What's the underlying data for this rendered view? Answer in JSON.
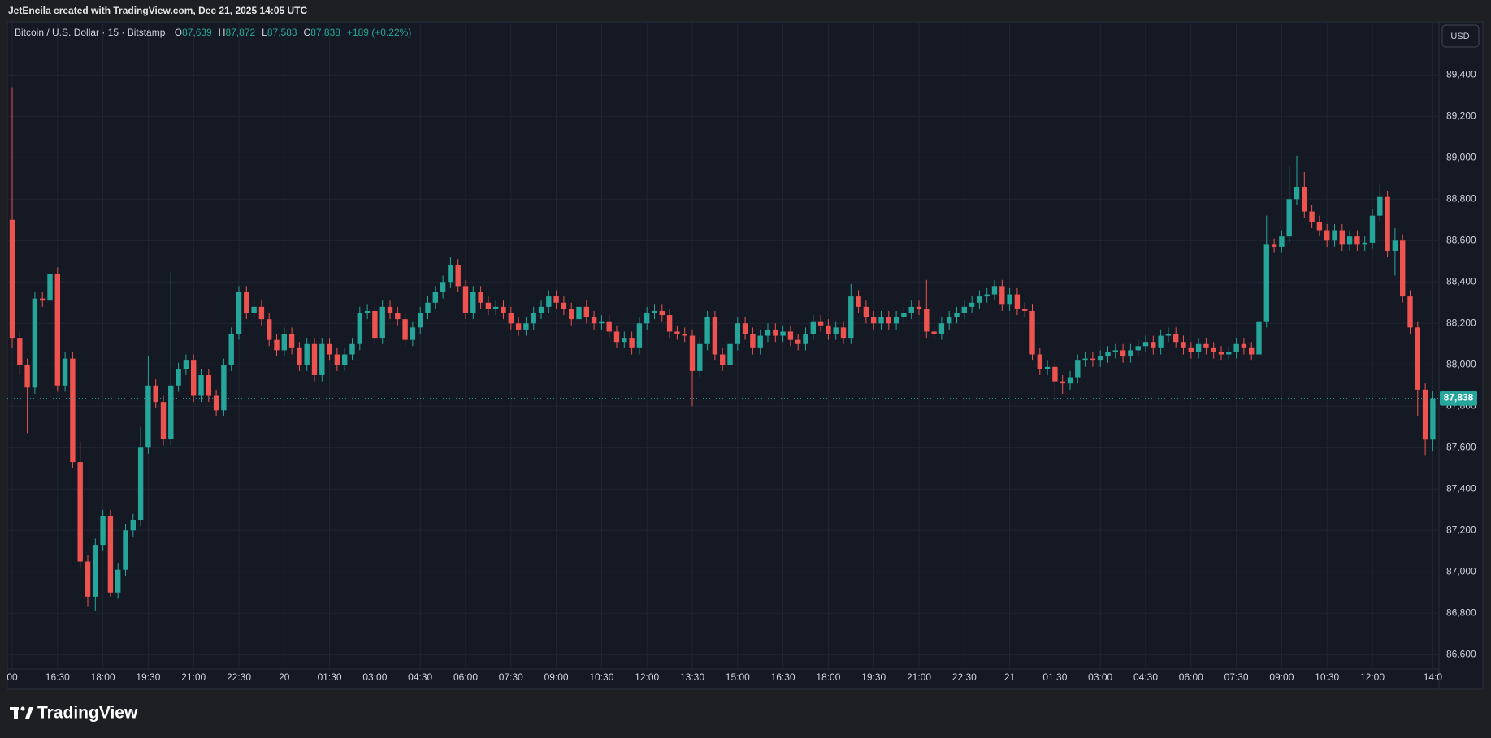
{
  "header": "JetEncila created with TradingView.com, Dec 21, 2025 14:05 UTC",
  "chart_data": {
    "type": "candlestick",
    "symbol": "Bitcoin / U.S. Dollar · 15 · Bitstamp",
    "legend": [
      {
        "key": "O",
        "value": "87,639"
      },
      {
        "key": "H",
        "value": "87,872"
      },
      {
        "key": "L",
        "value": "87,583"
      },
      {
        "key": "C",
        "value": "87,838"
      }
    ],
    "change": "+189 (+0.22%)",
    "currency": "USD",
    "last_price_label": "87,838",
    "up_color": "#26a69a",
    "down_color": "#ef5350",
    "grid": true,
    "ylim": [
      86550,
      89652
    ],
    "yticks": [
      {
        "value": 86600,
        "label": "86,600"
      },
      {
        "value": 86800,
        "label": "86,800"
      },
      {
        "value": 87000,
        "label": "87,000"
      },
      {
        "value": 87200,
        "label": "87,200"
      },
      {
        "value": 87400,
        "label": "87,400"
      },
      {
        "value": 87600,
        "label": "87,600"
      },
      {
        "value": 87800,
        "label": "87,800"
      },
      {
        "value": 88000,
        "label": "88,000"
      },
      {
        "value": 88200,
        "label": "88,200"
      },
      {
        "value": 88400,
        "label": "88,400"
      },
      {
        "value": 88600,
        "label": "88,600"
      },
      {
        "value": 88800,
        "label": "88,800"
      },
      {
        "value": 89000,
        "label": "89,000"
      },
      {
        "value": 89200,
        "label": "89,200"
      },
      {
        "value": 89400,
        "label": "89,400"
      }
    ],
    "xticks": [
      {
        "value": 0,
        "label": "00"
      },
      {
        "value": 6,
        "label": "16:30"
      },
      {
        "value": 12,
        "label": "18:00"
      },
      {
        "value": 18,
        "label": "19:30"
      },
      {
        "value": 24,
        "label": "21:00"
      },
      {
        "value": 30,
        "label": "22:30"
      },
      {
        "value": 36,
        "label": "20"
      },
      {
        "value": 42,
        "label": "01:30"
      },
      {
        "value": 48,
        "label": "03:00"
      },
      {
        "value": 54,
        "label": "04:30"
      },
      {
        "value": 60,
        "label": "06:00"
      },
      {
        "value": 66,
        "label": "07:30"
      },
      {
        "value": 72,
        "label": "09:00"
      },
      {
        "value": 78,
        "label": "10:30"
      },
      {
        "value": 84,
        "label": "12:00"
      },
      {
        "value": 90,
        "label": "13:30"
      },
      {
        "value": 96,
        "label": "15:00"
      },
      {
        "value": 102,
        "label": "16:30"
      },
      {
        "value": 108,
        "label": "18:00"
      },
      {
        "value": 114,
        "label": "19:30"
      },
      {
        "value": 120,
        "label": "21:00"
      },
      {
        "value": 126,
        "label": "22:30"
      },
      {
        "value": 132,
        "label": "21"
      },
      {
        "value": 138,
        "label": "01:30"
      },
      {
        "value": 144,
        "label": "03:00"
      },
      {
        "value": 150,
        "label": "04:30"
      },
      {
        "value": 156,
        "label": "06:00"
      },
      {
        "value": 162,
        "label": "07:30"
      },
      {
        "value": 168,
        "label": "09:00"
      },
      {
        "value": 174,
        "label": "10:30"
      },
      {
        "value": 180,
        "label": "12:00"
      },
      {
        "value": 188,
        "label": "14:0"
      }
    ],
    "ohlc": [
      [
        88700,
        89340,
        88080,
        88130
      ],
      [
        88130,
        88160,
        87950,
        88000
      ],
      [
        88000,
        88030,
        87670,
        87890
      ],
      [
        87890,
        88350,
        87860,
        88320
      ],
      [
        88320,
        88350,
        88280,
        88310
      ],
      [
        88310,
        88800,
        88280,
        88440
      ],
      [
        88440,
        88470,
        87870,
        87900
      ],
      [
        87900,
        88060,
        87870,
        88030
      ],
      [
        88030,
        88060,
        87500,
        87530
      ],
      [
        87530,
        87630,
        87020,
        87050
      ],
      [
        87050,
        87080,
        86830,
        86880
      ],
      [
        86880,
        87160,
        86810,
        87130
      ],
      [
        87130,
        87300,
        87100,
        87270
      ],
      [
        87270,
        87300,
        86880,
        86900
      ],
      [
        86900,
        87040,
        86870,
        87010
      ],
      [
        87010,
        87230,
        86980,
        87200
      ],
      [
        87200,
        87280,
        87170,
        87250
      ],
      [
        87250,
        87700,
        87220,
        87600
      ],
      [
        87600,
        88040,
        87570,
        87900
      ],
      [
        87900,
        87930,
        87790,
        87820
      ],
      [
        87820,
        87850,
        87610,
        87640
      ],
      [
        87640,
        88450,
        87610,
        87900
      ],
      [
        87900,
        88010,
        87870,
        87980
      ],
      [
        87980,
        88050,
        87950,
        88020
      ],
      [
        88020,
        88050,
        87820,
        87850
      ],
      [
        87850,
        87980,
        87820,
        87950
      ],
      [
        87950,
        87980,
        87820,
        87850
      ],
      [
        87850,
        87880,
        87750,
        87780
      ],
      [
        87780,
        88030,
        87750,
        88000
      ],
      [
        88000,
        88180,
        87970,
        88150
      ],
      [
        88150,
        88380,
        88120,
        88350
      ],
      [
        88350,
        88380,
        88220,
        88250
      ],
      [
        88250,
        88310,
        88220,
        88280
      ],
      [
        88280,
        88310,
        88190,
        88220
      ],
      [
        88220,
        88250,
        88090,
        88120
      ],
      [
        88120,
        88150,
        88040,
        88070
      ],
      [
        88070,
        88180,
        88040,
        88150
      ],
      [
        88150,
        88180,
        88050,
        88080
      ],
      [
        88080,
        88110,
        87970,
        88000
      ],
      [
        88000,
        88130,
        87970,
        88100
      ],
      [
        88100,
        88130,
        87920,
        87950
      ],
      [
        87950,
        88130,
        87920,
        88100
      ],
      [
        88100,
        88130,
        88020,
        88050
      ],
      [
        88050,
        88080,
        87970,
        88000
      ],
      [
        88000,
        88080,
        87970,
        88050
      ],
      [
        88050,
        88130,
        88020,
        88100
      ],
      [
        88100,
        88280,
        88070,
        88250
      ],
      [
        88250,
        88290,
        88220,
        88260
      ],
      [
        88260,
        88290,
        88100,
        88130
      ],
      [
        88130,
        88310,
        88100,
        88280
      ],
      [
        88280,
        88310,
        88220,
        88250
      ],
      [
        88250,
        88280,
        88190,
        88220
      ],
      [
        88220,
        88250,
        88090,
        88120
      ],
      [
        88120,
        88210,
        88090,
        88180
      ],
      [
        88180,
        88280,
        88150,
        88250
      ],
      [
        88250,
        88330,
        88220,
        88300
      ],
      [
        88300,
        88380,
        88270,
        88350
      ],
      [
        88350,
        88430,
        88320,
        88400
      ],
      [
        88400,
        88520,
        88370,
        88480
      ],
      [
        88480,
        88510,
        88350,
        88380
      ],
      [
        88380,
        88410,
        88220,
        88250
      ],
      [
        88250,
        88380,
        88220,
        88350
      ],
      [
        88350,
        88380,
        88270,
        88300
      ],
      [
        88300,
        88330,
        88240,
        88270
      ],
      [
        88270,
        88310,
        88240,
        88280
      ],
      [
        88280,
        88310,
        88220,
        88250
      ],
      [
        88250,
        88280,
        88170,
        88200
      ],
      [
        88200,
        88230,
        88140,
        88170
      ],
      [
        88170,
        88230,
        88140,
        88200
      ],
      [
        88200,
        88280,
        88170,
        88250
      ],
      [
        88250,
        88310,
        88220,
        88280
      ],
      [
        88280,
        88360,
        88250,
        88330
      ],
      [
        88330,
        88360,
        88270,
        88300
      ],
      [
        88300,
        88330,
        88240,
        88270
      ],
      [
        88270,
        88300,
        88190,
        88220
      ],
      [
        88220,
        88310,
        88190,
        88280
      ],
      [
        88280,
        88310,
        88200,
        88230
      ],
      [
        88230,
        88260,
        88170,
        88200
      ],
      [
        88200,
        88240,
        88170,
        88210
      ],
      [
        88210,
        88240,
        88130,
        88160
      ],
      [
        88160,
        88190,
        88080,
        88110
      ],
      [
        88110,
        88160,
        88080,
        88130
      ],
      [
        88130,
        88160,
        88050,
        88080
      ],
      [
        88080,
        88230,
        88050,
        88200
      ],
      [
        88200,
        88280,
        88170,
        88250
      ],
      [
        88250,
        88290,
        88220,
        88260
      ],
      [
        88260,
        88290,
        88210,
        88240
      ],
      [
        88240,
        88270,
        88130,
        88160
      ],
      [
        88160,
        88190,
        88120,
        88150
      ],
      [
        88150,
        88180,
        88110,
        88140
      ],
      [
        88140,
        88170,
        87800,
        87970
      ],
      [
        87970,
        88130,
        87940,
        88100
      ],
      [
        88100,
        88260,
        88070,
        88230
      ],
      [
        88230,
        88260,
        88020,
        88050
      ],
      [
        88050,
        88080,
        87970,
        88000
      ],
      [
        88000,
        88130,
        87970,
        88100
      ],
      [
        88100,
        88230,
        88070,
        88200
      ],
      [
        88200,
        88230,
        88120,
        88150
      ],
      [
        88150,
        88180,
        88050,
        88080
      ],
      [
        88080,
        88170,
        88050,
        88140
      ],
      [
        88140,
        88200,
        88110,
        88170
      ],
      [
        88170,
        88200,
        88110,
        88140
      ],
      [
        88140,
        88190,
        88110,
        88160
      ],
      [
        88160,
        88190,
        88090,
        88120
      ],
      [
        88120,
        88150,
        88070,
        88100
      ],
      [
        88100,
        88180,
        88070,
        88150
      ],
      [
        88150,
        88240,
        88120,
        88210
      ],
      [
        88210,
        88240,
        88160,
        88190
      ],
      [
        88190,
        88220,
        88120,
        88150
      ],
      [
        88150,
        88210,
        88120,
        88180
      ],
      [
        88180,
        88210,
        88100,
        88130
      ],
      [
        88130,
        88390,
        88100,
        88330
      ],
      [
        88330,
        88360,
        88250,
        88280
      ],
      [
        88280,
        88310,
        88200,
        88230
      ],
      [
        88230,
        88260,
        88170,
        88200
      ],
      [
        88200,
        88260,
        88170,
        88230
      ],
      [
        88230,
        88260,
        88170,
        88200
      ],
      [
        88200,
        88260,
        88170,
        88230
      ],
      [
        88230,
        88280,
        88200,
        88250
      ],
      [
        88250,
        88310,
        88220,
        88280
      ],
      [
        88280,
        88310,
        88240,
        88270
      ],
      [
        88270,
        88410,
        88130,
        88160
      ],
      [
        88160,
        88190,
        88120,
        88150
      ],
      [
        88150,
        88230,
        88120,
        88200
      ],
      [
        88200,
        88260,
        88170,
        88230
      ],
      [
        88230,
        88280,
        88200,
        88250
      ],
      [
        88250,
        88310,
        88220,
        88280
      ],
      [
        88280,
        88330,
        88250,
        88300
      ],
      [
        88300,
        88360,
        88270,
        88330
      ],
      [
        88330,
        88370,
        88300,
        88340
      ],
      [
        88340,
        88410,
        88310,
        88380
      ],
      [
        88380,
        88410,
        88260,
        88290
      ],
      [
        88290,
        88370,
        88260,
        88340
      ],
      [
        88340,
        88370,
        88240,
        88270
      ],
      [
        88270,
        88300,
        88230,
        88260
      ],
      [
        88260,
        88290,
        88020,
        88050
      ],
      [
        88050,
        88080,
        87950,
        87980
      ],
      [
        87980,
        88020,
        87950,
        87990
      ],
      [
        87990,
        88020,
        87850,
        87920
      ],
      [
        87920,
        87950,
        87860,
        87910
      ],
      [
        87910,
        87970,
        87880,
        87940
      ],
      [
        87940,
        88050,
        87910,
        88020
      ],
      [
        88020,
        88060,
        87990,
        88030
      ],
      [
        88030,
        88060,
        87990,
        88020
      ],
      [
        88020,
        88070,
        87990,
        88040
      ],
      [
        88040,
        88090,
        88010,
        88060
      ],
      [
        88060,
        88100,
        88030,
        88070
      ],
      [
        88070,
        88100,
        88010,
        88040
      ],
      [
        88040,
        88100,
        88010,
        88070
      ],
      [
        88070,
        88120,
        88040,
        88090
      ],
      [
        88090,
        88140,
        88060,
        88110
      ],
      [
        88110,
        88140,
        88050,
        88080
      ],
      [
        88080,
        88170,
        88050,
        88140
      ],
      [
        88140,
        88180,
        88110,
        88150
      ],
      [
        88150,
        88180,
        88080,
        88110
      ],
      [
        88110,
        88140,
        88050,
        88080
      ],
      [
        88080,
        88110,
        88030,
        88060
      ],
      [
        88060,
        88130,
        88030,
        88100
      ],
      [
        88100,
        88130,
        88050,
        88080
      ],
      [
        88080,
        88110,
        88030,
        88060
      ],
      [
        88060,
        88090,
        88020,
        88050
      ],
      [
        88050,
        88090,
        88020,
        88060
      ],
      [
        88060,
        88130,
        88030,
        88100
      ],
      [
        88100,
        88130,
        88050,
        88080
      ],
      [
        88080,
        88110,
        88020,
        88050
      ],
      [
        88050,
        88240,
        88020,
        88210
      ],
      [
        88210,
        88720,
        88180,
        88580
      ],
      [
        88580,
        88610,
        88540,
        88570
      ],
      [
        88570,
        88650,
        88540,
        88620
      ],
      [
        88620,
        88960,
        88590,
        88800
      ],
      [
        88800,
        89010,
        88770,
        88860
      ],
      [
        88860,
        88930,
        88710,
        88740
      ],
      [
        88740,
        88770,
        88660,
        88690
      ],
      [
        88690,
        88720,
        88620,
        88650
      ],
      [
        88650,
        88680,
        88570,
        88600
      ],
      [
        88600,
        88680,
        88570,
        88650
      ],
      [
        88650,
        88680,
        88550,
        88580
      ],
      [
        88580,
        88650,
        88550,
        88620
      ],
      [
        88620,
        88650,
        88550,
        88580
      ],
      [
        88580,
        88620,
        88550,
        88590
      ],
      [
        88590,
        88750,
        88560,
        88720
      ],
      [
        88720,
        88870,
        88690,
        88810
      ],
      [
        88810,
        88840,
        88520,
        88550
      ],
      [
        88550,
        88660,
        88430,
        88600
      ],
      [
        88600,
        88630,
        88300,
        88330
      ],
      [
        88330,
        88360,
        88150,
        88180
      ],
      [
        88180,
        88210,
        87750,
        87880
      ],
      [
        87880,
        87910,
        87560,
        87639
      ],
      [
        87639,
        87872,
        87583,
        87838
      ]
    ]
  },
  "footer": {
    "logo": "TradingView"
  }
}
